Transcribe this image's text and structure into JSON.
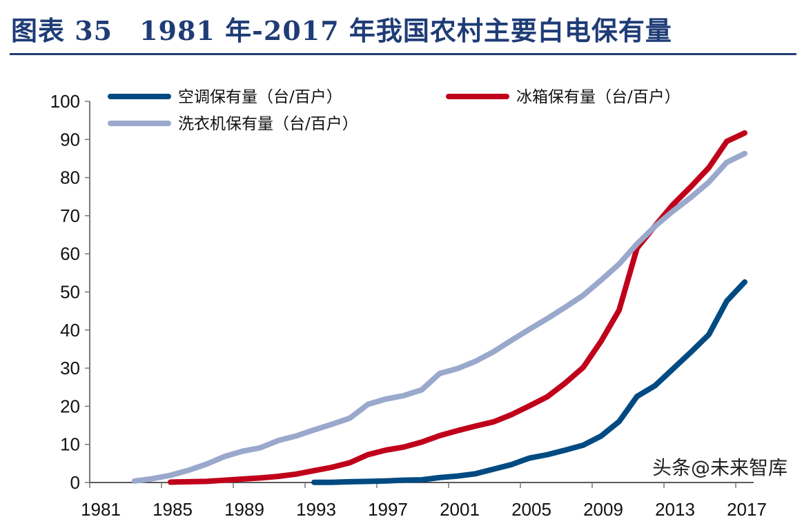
{
  "title": "图表 35　1981 年-2017 年我国农村主要白电保有量",
  "watermark": "头条@未来智库",
  "chart_data": {
    "type": "line",
    "title": "",
    "xlabel": "",
    "ylabel": "",
    "ylim": [
      0,
      100
    ],
    "yticks": [
      0,
      10,
      20,
      30,
      40,
      50,
      60,
      70,
      80,
      90,
      100
    ],
    "xlim": [
      1981,
      2017
    ],
    "xticks": [
      1981,
      1985,
      1989,
      1993,
      1997,
      2001,
      2005,
      2009,
      2013,
      2017
    ],
    "grid": false,
    "legend_position": "top",
    "series": [
      {
        "name": "空调保有量（台/百户）",
        "color": "#004A82",
        "x": [
          1993,
          1994,
          1995,
          1996,
          1997,
          1998,
          1999,
          2000,
          2001,
          2002,
          2003,
          2004,
          2005,
          2006,
          2007,
          2008,
          2009,
          2010,
          2011,
          2012,
          2013,
          2014,
          2015,
          2016,
          2017
        ],
        "y": [
          0.05,
          0.05,
          0.2,
          0.3,
          0.4,
          0.6,
          0.7,
          1.3,
          1.7,
          2.3,
          3.5,
          4.7,
          6.4,
          7.3,
          8.5,
          9.8,
          12.2,
          16.0,
          22.6,
          25.4,
          29.8,
          34.2,
          38.8,
          47.6,
          52.6
        ]
      },
      {
        "name": "冰箱保有量（台/百户）",
        "color": "#C0001A",
        "x": [
          1985,
          1986,
          1987,
          1988,
          1989,
          1990,
          1991,
          1992,
          1993,
          1994,
          1995,
          1996,
          1997,
          1998,
          1999,
          2000,
          2001,
          2002,
          2003,
          2004,
          2005,
          2006,
          2007,
          2008,
          2009,
          2010,
          2011,
          2012,
          2013,
          2014,
          2015,
          2016,
          2017
        ],
        "y": [
          0.1,
          0.2,
          0.3,
          0.6,
          0.9,
          1.2,
          1.6,
          2.2,
          3.1,
          4.0,
          5.2,
          7.3,
          8.5,
          9.3,
          10.6,
          12.3,
          13.6,
          14.8,
          15.9,
          17.8,
          20.1,
          22.5,
          26.1,
          30.2,
          37.1,
          45.2,
          61.5,
          67.3,
          72.9,
          77.6,
          82.6,
          89.5,
          91.7
        ]
      },
      {
        "name": "洗衣机保有量（台/百户）",
        "color": "#9AA8CC",
        "x": [
          1983,
          1984,
          1985,
          1986,
          1987,
          1988,
          1989,
          1990,
          1991,
          1992,
          1993,
          1994,
          1995,
          1996,
          1997,
          1998,
          1999,
          2000,
          2001,
          2002,
          2003,
          2004,
          2005,
          2006,
          2007,
          2008,
          2009,
          2010,
          2011,
          2012,
          2013,
          2014,
          2015,
          2016,
          2017
        ],
        "y": [
          0.4,
          1.0,
          1.9,
          3.2,
          4.8,
          6.8,
          8.2,
          9.1,
          11.0,
          12.2,
          13.8,
          15.3,
          16.9,
          20.5,
          21.9,
          22.8,
          24.3,
          28.6,
          29.9,
          31.8,
          34.3,
          37.3,
          40.2,
          43.0,
          46.0,
          49.1,
          53.1,
          57.3,
          62.6,
          67.2,
          71.2,
          74.8,
          78.8,
          84.0,
          86.3
        ]
      }
    ]
  }
}
